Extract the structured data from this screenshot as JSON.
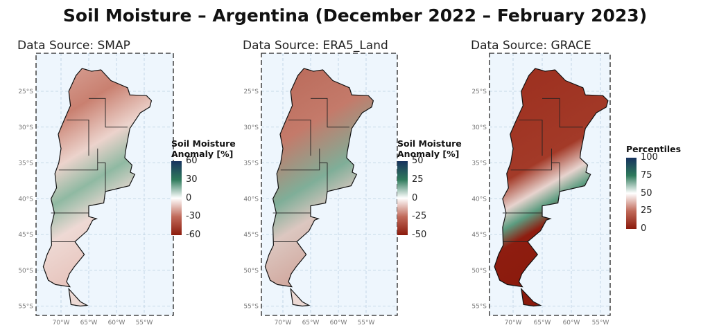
{
  "title": "Soil Moisture – Argentina (December 2022 – February 2023)",
  "panels": [
    {
      "source_label": "Data Source: SMAP"
    },
    {
      "source_label": "Data Source: ERA5_Land"
    },
    {
      "source_label": "Data Source: GRACE"
    }
  ],
  "lat_ticks": [
    "25°S",
    "30°S",
    "35°S",
    "40°S",
    "45°S",
    "50°S",
    "55°S"
  ],
  "lon_ticks": [
    "70°W",
    "65°W",
    "60°W",
    "55°W"
  ],
  "legends": [
    {
      "title_line1": "Soil Moisture",
      "title_line2": "Anomaly [%]",
      "labels": [
        "60",
        "30",
        "0",
        "-30",
        "-60"
      ],
      "colors": [
        "#17335e",
        "#2f7a5c",
        "#ffffff",
        "#c06a5a",
        "#8b1a0c"
      ]
    },
    {
      "title_line1": "Soil Moisture",
      "title_line2": "Anomaly [%]",
      "labels": [
        "50",
        "25",
        "0",
        "-25",
        "-50"
      ],
      "colors": [
        "#17335e",
        "#2f7a5c",
        "#ffffff",
        "#c06a5a",
        "#8b1a0c"
      ]
    },
    {
      "title_line1": "Percentiles",
      "labels": [
        "100",
        "75",
        "50",
        "25",
        "0"
      ],
      "colors": [
        "#17335e",
        "#2f7a5c",
        "#ffffff",
        "#c06a5a",
        "#8b1a0c"
      ]
    }
  ]
}
